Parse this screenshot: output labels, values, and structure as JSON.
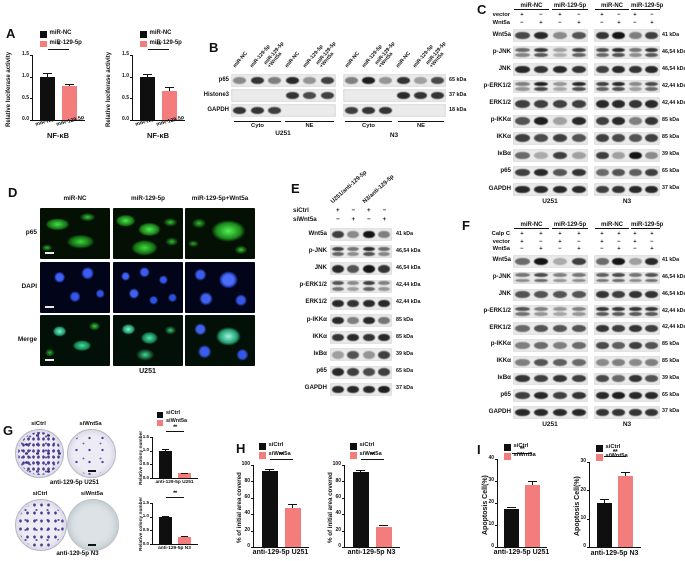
{
  "colors": {
    "bar_black": "#0f0f0f",
    "bar_salmon": "#f37d7d"
  },
  "panelA": {
    "label": "A",
    "legend": [
      {
        "label": "miR-NC",
        "color": "#0f0f0f"
      },
      {
        "label": "miR-129-5p",
        "color": "#f37d7d"
      }
    ],
    "charts": [
      {
        "type": "bar",
        "ylabel": "Relative luciferase activity",
        "ylim": [
          0,
          1.5
        ],
        "yticks": [
          "0.0",
          "0.5",
          "1.0",
          "1.5"
        ],
        "categories": [
          "miR-NC",
          "miR-129-5p"
        ],
        "values": [
          1.0,
          0.78
        ],
        "errors": [
          0.08,
          0.05
        ],
        "sig": "*",
        "xlabel": "NF-κB"
      },
      {
        "type": "bar",
        "ylabel": "Relative luciferase activity",
        "ylim": [
          0,
          1.5
        ],
        "yticks": [
          "0.0",
          "0.5",
          "1.0",
          "1.5"
        ],
        "categories": [
          "miR-NC",
          "miR-129-5p"
        ],
        "values": [
          1.0,
          0.68
        ],
        "errors": [
          0.07,
          0.09
        ],
        "sig": "**",
        "xlabel": "NF-κB"
      }
    ]
  },
  "panelB": {
    "label": "B",
    "lane_labels": [
      "miR-NC",
      "miR-129-5p",
      "miR-129-5p\n+Wnt5a",
      "miR-NC",
      "miR-129-5p",
      "miR-129-5p\n+Wnt5a"
    ],
    "rows": [
      {
        "protein": "p65",
        "kda": "65 kDa",
        "bands": [
          0.45,
          0.85,
          0.5,
          0.9,
          0.4,
          0.8,
          0.5,
          0.95,
          0.4,
          0.85,
          0.35,
          0.75
        ]
      },
      {
        "protein": "Histone3",
        "kda": "37 kDa",
        "bands": [
          0,
          0,
          0,
          0.85,
          0.75,
          0.8,
          0,
          0,
          0,
          0.9,
          0.85,
          0.85
        ]
      },
      {
        "protein": "GAPDH",
        "kda": "18 kDa",
        "bands": [
          0.85,
          0.85,
          0.8,
          0,
          0,
          0,
          0.8,
          0.85,
          0.85,
          0,
          0,
          0
        ]
      }
    ],
    "fraction_labels": [
      "Cyto",
      "NE",
      "Cyto",
      "NE"
    ],
    "cell_lines": [
      "U251",
      "N3"
    ]
  },
  "panelC": {
    "label": "C",
    "group_headers": [
      "miR-NC",
      "miR-129-5p",
      "miR-NC",
      "miR-129-5p"
    ],
    "conditions": [
      {
        "name": "vector",
        "signs": [
          "+",
          "−",
          "+",
          "−",
          "+",
          "−",
          "+",
          "−"
        ]
      },
      {
        "name": "Wnt5a",
        "signs": [
          "−",
          "+",
          "−",
          "+",
          "−",
          "+",
          "−",
          "+"
        ]
      }
    ],
    "rows": [
      {
        "protein": "Wnt5a",
        "kda": "41 kDa",
        "bands": [
          0.75,
          0.9,
          0.45,
          0.7,
          0.85,
          1.0,
          0.5,
          0.8
        ]
      },
      {
        "protein": "p-JNK",
        "kda": "46,54 kDa",
        "double": true,
        "bands": [
          0.6,
          0.85,
          0.35,
          0.8,
          0.75,
          0.9,
          0.55,
          0.85
        ]
      },
      {
        "protein": "JNK",
        "kda": "46,54 kDa",
        "bands": [
          0.9,
          0.85,
          0.9,
          0.85,
          0.8,
          0.9,
          0.85,
          0.9
        ]
      },
      {
        "protein": "p-ERK1/2",
        "kda": "42,44 kDa",
        "double": true,
        "bands": [
          0.5,
          0.95,
          0.4,
          0.9,
          0.8,
          0.9,
          0.45,
          0.75
        ]
      },
      {
        "protein": "ERK1/2",
        "kda": "42,44 kDa",
        "bands": [
          0.8,
          0.8,
          0.8,
          0.8,
          0.9,
          0.9,
          0.85,
          0.9
        ]
      },
      {
        "protein": "p-IKKα",
        "kda": "85 kDa",
        "bands": [
          0.7,
          0.95,
          0.35,
          0.9,
          0.8,
          0.9,
          0.5,
          0.85
        ]
      },
      {
        "protein": "IKKα",
        "kda": "85 kDa",
        "bands": [
          0.8,
          0.75,
          0.8,
          0.7,
          0.8,
          0.75,
          0.7,
          0.8
        ]
      },
      {
        "protein": "IκBα",
        "kda": "39 kDa",
        "bands": [
          0.6,
          0.3,
          0.8,
          0.35,
          0.8,
          0.35,
          1.0,
          0.45
        ]
      },
      {
        "protein": "p65",
        "kda": "65 kDa",
        "bands": [
          0.8,
          0.9,
          0.7,
          0.85,
          0.6,
          0.7,
          0.65,
          0.8
        ]
      },
      {
        "protein": "GAPDH",
        "kda": "37 kDa",
        "bands": [
          0.9,
          0.9,
          0.9,
          0.9,
          0.8,
          0.85,
          0.9,
          0.9
        ]
      }
    ],
    "cell_lines": [
      "U251",
      "N3"
    ]
  },
  "panelD": {
    "label": "D",
    "col_headers": [
      "miR-NC",
      "miR-129-5p",
      "miR-129-5p+Wnt5a"
    ],
    "row_labels": [
      "p65",
      "DAPI",
      "Merge"
    ],
    "cell_line": "U251"
  },
  "panelE": {
    "label": "E",
    "angled_headers": [
      "U251/anti-129-5p",
      "N3/anti-129-5p"
    ],
    "conditions": [
      {
        "name": "siCtrl",
        "signs": [
          "+",
          "−",
          "+",
          "−"
        ]
      },
      {
        "name": "siWnt5a",
        "signs": [
          "−",
          "+",
          "−",
          "+"
        ]
      }
    ],
    "rows": [
      {
        "protein": "Wnt5a",
        "kda": "41 kDa",
        "bands": [
          0.8,
          0.45,
          1.0,
          0.5
        ]
      },
      {
        "protein": "p-JNK",
        "kda": "46,54 kDa",
        "double": true,
        "bands": [
          0.8,
          0.55,
          0.9,
          0.6
        ]
      },
      {
        "protein": "JNK",
        "kda": "46,54 kDa",
        "bands": [
          0.9,
          0.7,
          1.0,
          0.85
        ]
      },
      {
        "protein": "p-ERK1/2",
        "kda": "42,44 kDa",
        "double": true,
        "bands": [
          0.7,
          0.45,
          0.8,
          0.5
        ]
      },
      {
        "protein": "ERK1/2",
        "kda": "42,44 kDa",
        "bands": [
          0.9,
          0.85,
          0.9,
          0.9
        ]
      },
      {
        "protein": "p-IKKα",
        "kda": "85 kDa",
        "bands": [
          0.9,
          0.5,
          0.9,
          0.55
        ]
      },
      {
        "protein": "IKKα",
        "kda": "85 kDa",
        "bands": [
          0.85,
          0.9,
          0.85,
          0.9
        ]
      },
      {
        "protein": "IκBα",
        "kda": "39 kDa",
        "bands": [
          0.35,
          0.7,
          0.4,
          0.8
        ]
      },
      {
        "protein": "p65",
        "kda": "65 kDa",
        "bands": [
          0.9,
          0.8,
          0.75,
          0.8
        ]
      },
      {
        "protein": "GAPDH",
        "kda": "37 kDa",
        "bands": [
          0.9,
          0.9,
          0.9,
          0.95
        ]
      }
    ]
  },
  "panelF": {
    "label": "F",
    "group_headers": [
      "miR-NC",
      "miR-129-5p",
      "miR-NC",
      "miR-129-5p"
    ],
    "conditions": [
      {
        "name": "Calp C",
        "signs": [
          "+",
          "+",
          "+",
          "+",
          "+",
          "+",
          "+",
          "+"
        ]
      },
      {
        "name": "vector",
        "signs": [
          "+",
          "−",
          "+",
          "−",
          "+",
          "−",
          "+",
          "−"
        ]
      },
      {
        "name": "Wnt5a",
        "signs": [
          "−",
          "+",
          "−",
          "+",
          "−",
          "+",
          "−",
          "+"
        ]
      }
    ],
    "rows": [
      {
        "protein": "Wnt5a",
        "kda": "41 kDa",
        "bands": [
          0.6,
          1.0,
          0.3,
          0.8,
          0.6,
          1.0,
          0.35,
          0.9
        ]
      },
      {
        "protein": "p-JNK",
        "kda": "46,54 kDa",
        "double": true,
        "bands": [
          0.55,
          0.75,
          0.5,
          0.55,
          0.65,
          0.75,
          0.55,
          0.7
        ]
      },
      {
        "protein": "JNK",
        "kda": "46,54 kDa",
        "bands": [
          0.7,
          0.7,
          0.7,
          0.7,
          0.85,
          0.8,
          0.85,
          0.85
        ]
      },
      {
        "protein": "p-ERK1/2",
        "kda": "42,44 kDa",
        "double": true,
        "bands": [
          0.7,
          0.5,
          0.4,
          0.5,
          0.85,
          0.85,
          0.85,
          0.85
        ]
      },
      {
        "protein": "ERK1/2",
        "kda": "42,44 kDa",
        "bands": [
          0.6,
          0.7,
          0.7,
          0.7,
          0.85,
          0.8,
          0.85,
          0.8
        ]
      },
      {
        "protein": "p-IKKα",
        "kda": "85 kDa",
        "bands": [
          0.5,
          0.6,
          0.5,
          0.6,
          0.75,
          0.65,
          0.8,
          0.7
        ]
      },
      {
        "protein": "IKKα",
        "kda": "85 kDa",
        "bands": [
          0.5,
          0.7,
          0.65,
          0.6,
          0.45,
          0.5,
          0.45,
          0.5
        ]
      },
      {
        "protein": "IκBα",
        "kda": "39 kDa",
        "bands": [
          0.85,
          0.8,
          0.85,
          0.8,
          0.75,
          0.6,
          0.85,
          0.7
        ]
      },
      {
        "protein": "p65",
        "kda": "65 kDa",
        "bands": [
          0.8,
          0.9,
          0.8,
          0.85,
          0.9,
          0.95,
          0.9,
          0.9
        ]
      },
      {
        "protein": "GAPDH",
        "kda": "37 kDa",
        "bands": [
          0.9,
          0.9,
          0.9,
          0.9,
          0.85,
          0.85,
          0.85,
          0.85
        ]
      }
    ],
    "cell_lines": [
      "U251",
      "N3"
    ]
  },
  "panelG": {
    "label": "G",
    "legend": [
      {
        "label": "siCtrl",
        "color": "#0f0f0f"
      },
      {
        "label": "siWnt5a",
        "color": "#f37d7d"
      }
    ],
    "dish_rows": [
      {
        "dish_labels": [
          "siCtrl",
          "siWnt5a"
        ],
        "densities": [
          "dense",
          "sparse"
        ],
        "caption": "anti-129-5p  U251"
      },
      {
        "dish_labels": [
          "siCtrl",
          "siWnt5a"
        ],
        "densities": [
          "medium",
          "none"
        ],
        "caption": "anti-129-5p  N3"
      }
    ],
    "charts": [
      {
        "type": "bar",
        "ylabel": "Relative colony number",
        "ylim": [
          0,
          1.5
        ],
        "yticks": [
          "0.0",
          "0.5",
          "1.0",
          "1.5"
        ],
        "values": [
          1.0,
          0.18
        ],
        "errors": [
          0.06,
          0.02
        ],
        "sig": "**",
        "xlabel": "anti-129-5p U251"
      },
      {
        "type": "bar",
        "ylabel": "Relative colony number",
        "ylim": [
          0,
          1.5
        ],
        "yticks": [
          "0.0",
          "0.5",
          "1.0",
          "1.5"
        ],
        "values": [
          1.0,
          0.27
        ],
        "errors": [
          0.03,
          0.03
        ],
        "sig": "**",
        "xlabel": "anti-129-5p N3"
      }
    ]
  },
  "panelH": {
    "label": "H",
    "legend": [
      {
        "label": "siCtrl",
        "color": "#0f0f0f"
      },
      {
        "label": "siWnt5a",
        "color": "#f37d7d"
      }
    ],
    "charts": [
      {
        "type": "bar",
        "ylabel": "% of initial area covered",
        "ylim": [
          0,
          100
        ],
        "yticks": [
          "0",
          "20",
          "40",
          "60",
          "80",
          "100"
        ],
        "values": [
          93,
          48
        ],
        "errors": [
          2,
          5
        ],
        "sig": "**",
        "xlabel": "anti-129-5p U251"
      },
      {
        "type": "bar",
        "ylabel": "% of initial area covered",
        "ylim": [
          0,
          100
        ],
        "yticks": [
          "0",
          "20",
          "40",
          "60",
          "80",
          "100"
        ],
        "values": [
          92,
          25
        ],
        "errors": [
          2,
          2
        ],
        "sig": "**",
        "xlabel": "anti-129-5p  N3"
      }
    ]
  },
  "panelI": {
    "label": "I",
    "legend": [
      {
        "label": "siCtrl",
        "color": "#0f0f0f"
      },
      {
        "label": "siWnt5a",
        "color": "#f37d7d"
      }
    ],
    "charts": [
      {
        "type": "bar",
        "ylabel": "Apoptosis Cell(%)",
        "ylim": [
          0,
          40
        ],
        "yticks": [
          "0",
          "10",
          "20",
          "30",
          "40"
        ],
        "values": [
          17.5,
          28
        ],
        "errors": [
          0.8,
          2
        ],
        "sig": "**",
        "xlabel": "anti-129-5p U251"
      },
      {
        "type": "bar",
        "ylabel": "Apoptosis Cell(%)",
        "ylim": [
          0,
          30
        ],
        "yticks": [
          "0",
          "10",
          "20",
          "30"
        ],
        "values": [
          15.5,
          25
        ],
        "errors": [
          1.5,
          1.5
        ],
        "sig": "**",
        "xlabel": "anti-129-5p  N3"
      }
    ]
  }
}
